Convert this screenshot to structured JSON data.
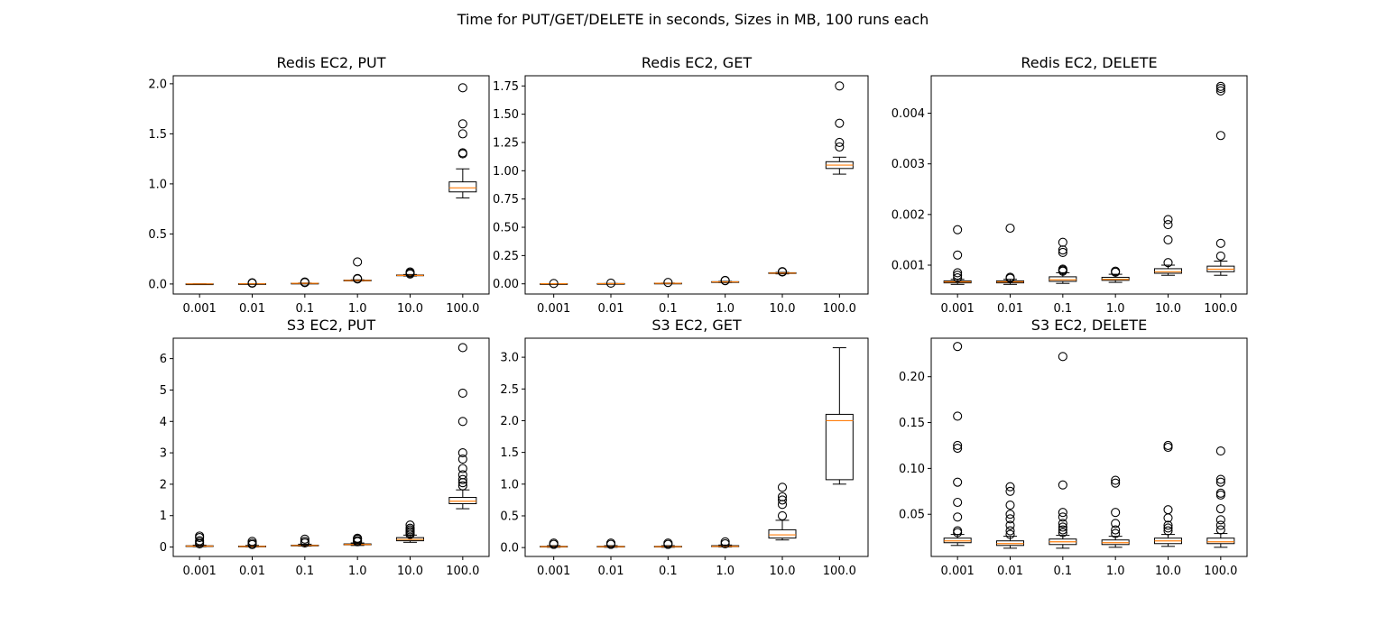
{
  "suptitle": "Time for PUT/GET/DELETE in seconds, Sizes in MB, 100 runs each",
  "colors": {
    "median": "#ff7f0e",
    "box": "#000000",
    "frame": "#000000",
    "box_fill": "#ffffff"
  },
  "chart_data": [
    {
      "type": "box",
      "title": "Redis EC2, PUT",
      "categories": [
        "0.001",
        "0.01",
        "0.1",
        "1.0",
        "10.0",
        "100.0"
      ],
      "ylim": [
        -0.1,
        2.08
      ],
      "yticks": [
        0.0,
        0.5,
        1.0,
        1.5,
        2.0
      ],
      "ytick_labels": [
        "0.0",
        "0.5",
        "1.0",
        "1.5",
        "2.0"
      ],
      "boxes": [
        {
          "whislo": 0.0008,
          "q1": 0.0009,
          "med": 0.001,
          "q3": 0.0011,
          "whishi": 0.0012,
          "fliers": []
        },
        {
          "whislo": 0.001,
          "q1": 0.002,
          "med": 0.002,
          "q3": 0.003,
          "whishi": 0.004,
          "fliers": [
            0.008,
            0.012
          ]
        },
        {
          "whislo": 0.004,
          "q1": 0.006,
          "med": 0.007,
          "q3": 0.008,
          "whishi": 0.01,
          "fliers": [
            0.014,
            0.02
          ]
        },
        {
          "whislo": 0.03,
          "q1": 0.033,
          "med": 0.035,
          "q3": 0.038,
          "whishi": 0.042,
          "fliers": [
            0.05,
            0.055,
            0.22
          ]
        },
        {
          "whislo": 0.08,
          "q1": 0.083,
          "med": 0.086,
          "q3": 0.09,
          "whishi": 0.095,
          "fliers": [
            0.1,
            0.11,
            0.12
          ]
        },
        {
          "whislo": 0.86,
          "q1": 0.92,
          "med": 0.96,
          "q3": 1.02,
          "whishi": 1.15,
          "fliers": [
            1.3,
            1.31,
            1.5,
            1.6,
            1.96
          ]
        }
      ]
    },
    {
      "type": "box",
      "title": "Redis EC2, GET",
      "categories": [
        "0.001",
        "0.01",
        "0.1",
        "1.0",
        "10.0",
        "100.0"
      ],
      "ylim": [
        -0.09,
        1.84
      ],
      "yticks": [
        0.0,
        0.25,
        0.5,
        0.75,
        1.0,
        1.25,
        1.5,
        1.75
      ],
      "ytick_labels": [
        "0.00",
        "0.25",
        "0.50",
        "0.75",
        "1.00",
        "1.25",
        "1.50",
        "1.75"
      ],
      "boxes": [
        {
          "whislo": 0.0008,
          "q1": 0.0009,
          "med": 0.001,
          "q3": 0.0011,
          "whishi": 0.0012,
          "fliers": [
            0.003
          ]
        },
        {
          "whislo": 0.001,
          "q1": 0.0015,
          "med": 0.002,
          "q3": 0.0025,
          "whishi": 0.003,
          "fliers": [
            0.006
          ]
        },
        {
          "whislo": 0.003,
          "q1": 0.004,
          "med": 0.005,
          "q3": 0.006,
          "whishi": 0.007,
          "fliers": [
            0.012
          ]
        },
        {
          "whislo": 0.012,
          "q1": 0.015,
          "med": 0.017,
          "q3": 0.019,
          "whishi": 0.022,
          "fliers": [
            0.028,
            0.03
          ]
        },
        {
          "whislo": 0.088,
          "q1": 0.092,
          "med": 0.095,
          "q3": 0.098,
          "whishi": 0.101,
          "fliers": [
            0.105,
            0.108
          ]
        },
        {
          "whislo": 0.97,
          "q1": 1.02,
          "med": 1.05,
          "q3": 1.08,
          "whishi": 1.12,
          "fliers": [
            1.21,
            1.25,
            1.42,
            1.75
          ]
        }
      ]
    },
    {
      "type": "box",
      "title": "Redis EC2, DELETE",
      "categories": [
        "0.001",
        "0.01",
        "0.1",
        "1.0",
        "10.0",
        "100.0"
      ],
      "ylim": [
        0.00043,
        0.00474
      ],
      "yticks": [
        0.001,
        0.002,
        0.003,
        0.004
      ],
      "ytick_labels": [
        "0.001",
        "0.002",
        "0.003",
        "0.004"
      ],
      "boxes": [
        {
          "whislo": 0.00062,
          "q1": 0.00065,
          "med": 0.00067,
          "q3": 0.00069,
          "whishi": 0.00072,
          "fliers": [
            0.00075,
            0.0008,
            0.00085,
            0.0012,
            0.0017
          ]
        },
        {
          "whislo": 0.00062,
          "q1": 0.00065,
          "med": 0.00067,
          "q3": 0.00069,
          "whishi": 0.00072,
          "fliers": [
            0.00074,
            0.00076,
            0.00173
          ]
        },
        {
          "whislo": 0.00064,
          "q1": 0.00068,
          "med": 0.00071,
          "q3": 0.00077,
          "whishi": 0.00085,
          "fliers": [
            0.00088,
            0.0009,
            0.00092,
            0.00125,
            0.0013,
            0.00145
          ]
        },
        {
          "whislo": 0.00066,
          "q1": 0.0007,
          "med": 0.00072,
          "q3": 0.00076,
          "whishi": 0.00082,
          "fliers": [
            0.00086,
            0.00088
          ]
        },
        {
          "whislo": 0.0008,
          "q1": 0.00084,
          "med": 0.00087,
          "q3": 0.00093,
          "whishi": 0.001,
          "fliers": [
            0.00105,
            0.0015,
            0.0018,
            0.0019
          ]
        },
        {
          "whislo": 0.0008,
          "q1": 0.00087,
          "med": 0.00092,
          "q3": 0.00098,
          "whishi": 0.00108,
          "fliers": [
            0.00118,
            0.00143,
            0.00356,
            0.00444,
            0.00449,
            0.00453
          ]
        }
      ]
    },
    {
      "type": "box",
      "title": "S3 EC2, PUT",
      "categories": [
        "0.001",
        "0.01",
        "0.1",
        "1.0",
        "10.0",
        "100.0"
      ],
      "ylim": [
        -0.3,
        6.65
      ],
      "yticks": [
        0,
        1,
        2,
        3,
        4,
        5,
        6
      ],
      "ytick_labels": [
        "0",
        "1",
        "2",
        "3",
        "4",
        "5",
        "6"
      ],
      "boxes": [
        {
          "whislo": 0.01,
          "q1": 0.02,
          "med": 0.03,
          "q3": 0.04,
          "whishi": 0.06,
          "fliers": [
            0.1,
            0.15,
            0.2,
            0.3,
            0.35
          ]
        },
        {
          "whislo": 0.005,
          "q1": 0.015,
          "med": 0.02,
          "q3": 0.03,
          "whishi": 0.05,
          "fliers": [
            0.08,
            0.12,
            0.18
          ]
        },
        {
          "whislo": 0.03,
          "q1": 0.04,
          "med": 0.05,
          "q3": 0.06,
          "whishi": 0.09,
          "fliers": [
            0.13,
            0.18,
            0.25
          ]
        },
        {
          "whislo": 0.05,
          "q1": 0.07,
          "med": 0.08,
          "q3": 0.1,
          "whishi": 0.13,
          "fliers": [
            0.17,
            0.2,
            0.25,
            0.28
          ]
        },
        {
          "whislo": 0.15,
          "q1": 0.2,
          "med": 0.24,
          "q3": 0.3,
          "whishi": 0.38,
          "fliers": [
            0.4,
            0.45,
            0.5,
            0.55,
            0.6,
            0.7
          ]
        },
        {
          "whislo": 1.22,
          "q1": 1.38,
          "med": 1.46,
          "q3": 1.58,
          "whishi": 1.82,
          "fliers": [
            1.95,
            2.05,
            2.15,
            2.3,
            2.5,
            2.8,
            3.0,
            4.0,
            4.9,
            6.35
          ]
        }
      ]
    },
    {
      "type": "box",
      "title": "S3 EC2, GET",
      "categories": [
        "0.001",
        "0.01",
        "0.1",
        "1.0",
        "10.0",
        "100.0"
      ],
      "ylim": [
        -0.14,
        3.3
      ],
      "yticks": [
        0.0,
        0.5,
        1.0,
        1.5,
        2.0,
        2.5,
        3.0
      ],
      "ytick_labels": [
        "0.0",
        "0.5",
        "1.0",
        "1.5",
        "2.0",
        "2.5",
        "3.0"
      ],
      "boxes": [
        {
          "whislo": 0.005,
          "q1": 0.01,
          "med": 0.015,
          "q3": 0.02,
          "whishi": 0.03,
          "fliers": [
            0.05,
            0.07
          ]
        },
        {
          "whislo": 0.005,
          "q1": 0.01,
          "med": 0.015,
          "q3": 0.02,
          "whishi": 0.03,
          "fliers": [
            0.05,
            0.07
          ]
        },
        {
          "whislo": 0.005,
          "q1": 0.01,
          "med": 0.015,
          "q3": 0.02,
          "whishi": 0.03,
          "fliers": [
            0.05,
            0.07
          ]
        },
        {
          "whislo": 0.01,
          "q1": 0.015,
          "med": 0.02,
          "q3": 0.03,
          "whishi": 0.04,
          "fliers": [
            0.06,
            0.09
          ]
        },
        {
          "whislo": 0.12,
          "q1": 0.15,
          "med": 0.2,
          "q3": 0.28,
          "whishi": 0.43,
          "fliers": [
            0.5,
            0.68,
            0.75,
            0.8,
            0.95
          ]
        },
        {
          "whislo": 1.0,
          "q1": 1.07,
          "med": 2.0,
          "q3": 2.1,
          "whishi": 3.15,
          "fliers": []
        }
      ]
    },
    {
      "type": "box",
      "title": "S3 EC2, DELETE",
      "categories": [
        "0.001",
        "0.01",
        "0.1",
        "1.0",
        "10.0",
        "100.0"
      ],
      "ylim": [
        0.004,
        0.242
      ],
      "yticks": [
        0.05,
        0.1,
        0.15,
        0.2
      ],
      "ytick_labels": [
        "0.05",
        "0.10",
        "0.15",
        "0.20"
      ],
      "boxes": [
        {
          "whislo": 0.016,
          "q1": 0.019,
          "med": 0.021,
          "q3": 0.024,
          "whishi": 0.028,
          "fliers": [
            0.03,
            0.032,
            0.047,
            0.063,
            0.085,
            0.122,
            0.125,
            0.157,
            0.233
          ]
        },
        {
          "whislo": 0.013,
          "q1": 0.016,
          "med": 0.018,
          "q3": 0.021,
          "whishi": 0.026,
          "fliers": [
            0.028,
            0.032,
            0.038,
            0.045,
            0.05,
            0.06,
            0.075,
            0.08
          ]
        },
        {
          "whislo": 0.013,
          "q1": 0.017,
          "med": 0.02,
          "q3": 0.023,
          "whishi": 0.027,
          "fliers": [
            0.03,
            0.033,
            0.036,
            0.04,
            0.047,
            0.052,
            0.082,
            0.222
          ]
        },
        {
          "whislo": 0.014,
          "q1": 0.017,
          "med": 0.019,
          "q3": 0.022,
          "whishi": 0.026,
          "fliers": [
            0.029,
            0.033,
            0.04,
            0.052,
            0.084,
            0.087
          ]
        },
        {
          "whislo": 0.015,
          "q1": 0.018,
          "med": 0.021,
          "q3": 0.024,
          "whishi": 0.028,
          "fliers": [
            0.032,
            0.035,
            0.038,
            0.046,
            0.055,
            0.123,
            0.125
          ]
        },
        {
          "whislo": 0.014,
          "q1": 0.018,
          "med": 0.02,
          "q3": 0.024,
          "whishi": 0.029,
          "fliers": [
            0.033,
            0.038,
            0.044,
            0.056,
            0.071,
            0.073,
            0.085,
            0.088,
            0.119
          ]
        }
      ]
    }
  ]
}
